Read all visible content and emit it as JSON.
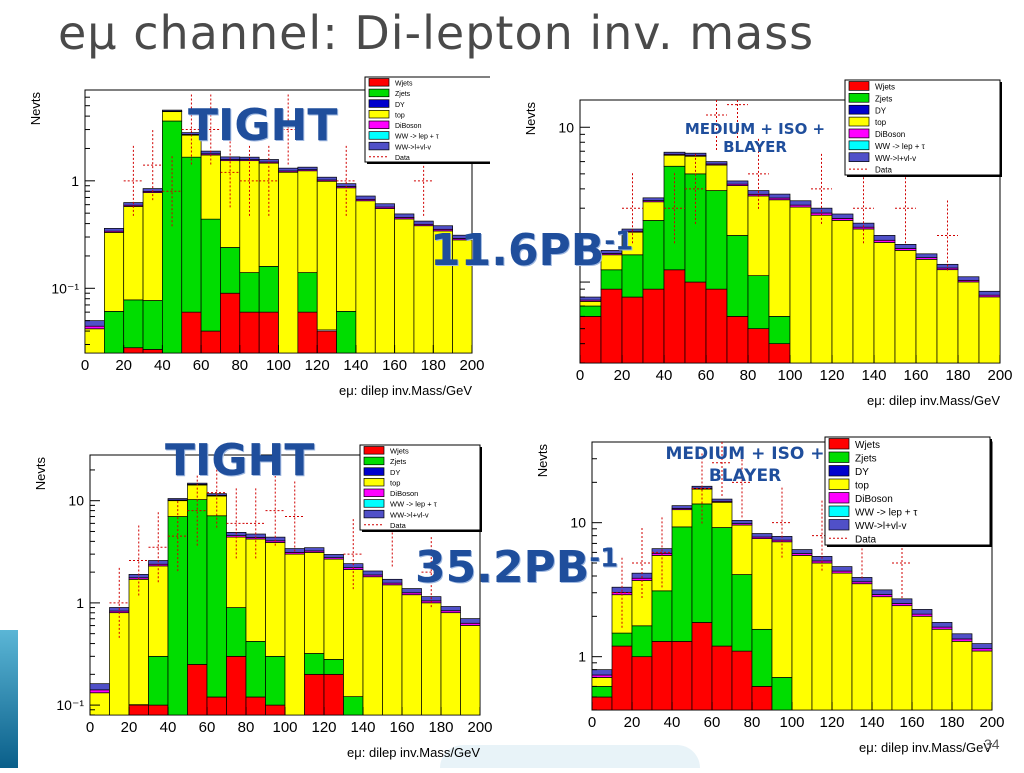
{
  "slide": {
    "title": "eμ channel: Di-lepton inv. mass",
    "page_number": "34",
    "lumi_top": "11.6PB",
    "lumi_bottom": "35.2PB",
    "lumi_exp": "-1",
    "tight": "TIGHT",
    "medium_line1": "MEDIUM + ISO +",
    "medium_line2": "BLAYER"
  },
  "colors": {
    "Wjets": "#ff0000",
    "Zjets": "#00dd00",
    "DY": "#0000cc",
    "top": "#ffff00",
    "DiBoson": "#ff00ff",
    "WWlep": "#00ffff",
    "WWlvlv": "#5050c8",
    "Data": "#d00000"
  },
  "legend": [
    "Wjets",
    "Zjets",
    "DY",
    "top",
    "DiBoson",
    "WW -> lep + τ",
    "WW->l+vl-v",
    "Data"
  ],
  "chart_data": [
    {
      "type": "bar",
      "stacked": true,
      "log_y": true,
      "ylabel": "Nevts",
      "xlabel": "eμ: dilep inv.Mass/GeV",
      "xlim": [
        0,
        200
      ],
      "ylim": [
        0.025,
        7
      ],
      "xticks": [
        0,
        20,
        40,
        60,
        80,
        100,
        120,
        140,
        160,
        180,
        200
      ],
      "yticks": [
        {
          "v": 1,
          "label": "1"
        },
        {
          "v": 0.1,
          "label": "10⁻¹"
        }
      ],
      "bin_width": 10,
      "series": {
        "Wjets": [
          0.001,
          0.001,
          0.028,
          0.027,
          0.001,
          0.06,
          0.04,
          0.09,
          0.06,
          0.06,
          0.001,
          0.06,
          0.04,
          0.001,
          0.001,
          0.001,
          0.001,
          0.001,
          0.001,
          0.001
        ],
        "Zjets": [
          0.001,
          0.06,
          0.05,
          0.05,
          3.6,
          1.6,
          0.4,
          0.15,
          0.08,
          0.1,
          0.001,
          0.08,
          0.001,
          0.06,
          0.001,
          0.001,
          0.001,
          0.001,
          0.001,
          0.001
        ],
        "top": [
          0.04,
          0.27,
          0.5,
          0.7,
          0.8,
          1.0,
          1.3,
          1.3,
          1.4,
          1.3,
          1.2,
          1.1,
          0.95,
          0.8,
          0.65,
          0.55,
          0.44,
          0.38,
          0.34,
          0.28
        ],
        "other": [
          0.008,
          0.03,
          0.05,
          0.07,
          0.15,
          0.15,
          0.15,
          0.13,
          0.12,
          0.12,
          0.11,
          0.1,
          0.09,
          0.08,
          0.07,
          0.06,
          0.05,
          0.04,
          0.04,
          0.03
        ]
      },
      "data": [
        {
          "x": 25,
          "y": 1.0
        },
        {
          "x": 35,
          "y": 1.4
        },
        {
          "x": 45,
          "y": 0.8
        },
        {
          "x": 55,
          "y": 3.0
        },
        {
          "x": 65,
          "y": 3.0
        },
        {
          "x": 75,
          "y": 1.2
        },
        {
          "x": 85,
          "y": 1.0
        },
        {
          "x": 95,
          "y": 1.0
        },
        {
          "x": 105,
          "y": 3.0
        },
        {
          "x": 135,
          "y": 1.0
        },
        {
          "x": 175,
          "y": 1.0
        }
      ]
    },
    {
      "type": "bar",
      "stacked": true,
      "log_y": true,
      "ylabel": "Nevts",
      "xlabel": "eμ: dilep inv.Mass/GeV",
      "xlim": [
        0,
        200
      ],
      "ylim": [
        0.3,
        15
      ],
      "xticks": [
        0,
        20,
        40,
        60,
        80,
        100,
        120,
        140,
        160,
        180,
        200
      ],
      "yticks": [
        {
          "v": 10,
          "label": "10"
        }
      ],
      "bin_width": 10,
      "series": {
        "Wjets": [
          0.6,
          0.9,
          0.8,
          0.9,
          1.2,
          1.0,
          0.9,
          0.6,
          0.5,
          0.4,
          0.001,
          0.001,
          0.001,
          0.001,
          0.001,
          0.001,
          0.001,
          0.001,
          0.001,
          0.001
        ],
        "Zjets": [
          0.1,
          0.3,
          0.7,
          1.6,
          4.4,
          4.0,
          3.0,
          1.4,
          0.6,
          0.2,
          0.15,
          0.001,
          0.001,
          0.001,
          0.001,
          0.001,
          0.001,
          0.001,
          0.001,
          0.001
        ],
        "top": [
          0.05,
          0.3,
          0.6,
          0.8,
          1.0,
          1.5,
          1.8,
          2.2,
          2.5,
          2.8,
          2.9,
          2.7,
          2.5,
          2.2,
          1.8,
          1.6,
          1.4,
          1.2,
          1.0,
          0.8
        ],
        "other": [
          0.05,
          0.1,
          0.1,
          0.2,
          0.3,
          0.3,
          0.3,
          0.3,
          0.3,
          0.3,
          0.3,
          0.3,
          0.25,
          0.2,
          0.2,
          0.15,
          0.12,
          0.1,
          0.08,
          0.07
        ]
      },
      "data": [
        {
          "x": 25,
          "y": 3.0
        },
        {
          "x": 45,
          "y": 3.0
        },
        {
          "x": 55,
          "y": 4.0
        },
        {
          "x": 65,
          "y": 12
        },
        {
          "x": 75,
          "y": 14
        },
        {
          "x": 85,
          "y": 5
        },
        {
          "x": 115,
          "y": 4
        },
        {
          "x": 135,
          "y": 3
        },
        {
          "x": 155,
          "y": 3
        },
        {
          "x": 175,
          "y": 2
        }
      ]
    },
    {
      "type": "bar",
      "stacked": true,
      "log_y": true,
      "ylabel": "Nevts",
      "xlabel": "eμ: dilep inv.Mass/GeV",
      "xlim": [
        0,
        200
      ],
      "ylim": [
        0.08,
        28
      ],
      "xticks": [
        0,
        20,
        40,
        60,
        80,
        100,
        120,
        140,
        160,
        180,
        200
      ],
      "yticks": [
        {
          "v": 10,
          "label": "10"
        },
        {
          "v": 1,
          "label": "1"
        },
        {
          "v": 0.1,
          "label": "10⁻¹"
        }
      ],
      "bin_width": 10,
      "series": {
        "Wjets": [
          0.001,
          0.001,
          0.1,
          0.1,
          0.001,
          0.25,
          0.12,
          0.3,
          0.12,
          0.1,
          0.001,
          0.2,
          0.2,
          0.001,
          0.001,
          0.001,
          0.001,
          0.001,
          0.001,
          0.001
        ],
        "Zjets": [
          0.001,
          0.001,
          0.001,
          0.2,
          7.0,
          10.0,
          7.0,
          0.6,
          0.3,
          0.2,
          0.001,
          0.12,
          0.08,
          0.12,
          0.001,
          0.001,
          0.001,
          0.001,
          0.001,
          0.001
        ],
        "top": [
          0.13,
          0.8,
          1.6,
          2.0,
          3.0,
          4.0,
          4.0,
          3.5,
          3.8,
          3.6,
          3.0,
          2.8,
          2.4,
          2.0,
          1.8,
          1.5,
          1.2,
          1.0,
          0.8,
          0.6
        ],
        "other": [
          0.03,
          0.1,
          0.2,
          0.3,
          0.5,
          0.6,
          0.6,
          0.5,
          0.5,
          0.5,
          0.4,
          0.35,
          0.3,
          0.3,
          0.25,
          0.2,
          0.18,
          0.15,
          0.12,
          0.1
        ]
      },
      "data": [
        {
          "x": 15,
          "y": 1.0
        },
        {
          "x": 25,
          "y": 2.6
        },
        {
          "x": 35,
          "y": 3.5
        },
        {
          "x": 45,
          "y": 4.5
        },
        {
          "x": 55,
          "y": 8
        },
        {
          "x": 65,
          "y": 12
        },
        {
          "x": 75,
          "y": 6
        },
        {
          "x": 85,
          "y": 6
        },
        {
          "x": 95,
          "y": 8
        },
        {
          "x": 105,
          "y": 7
        },
        {
          "x": 135,
          "y": 3
        },
        {
          "x": 155,
          "y": 5
        },
        {
          "x": 175,
          "y": 2
        }
      ]
    },
    {
      "type": "bar",
      "stacked": true,
      "log_y": true,
      "ylabel": "Nevts",
      "xlabel": "eμ: dilep inv.Mass/GeV",
      "xlim": [
        0,
        200
      ],
      "ylim": [
        0.4,
        40
      ],
      "xticks": [
        0,
        20,
        40,
        60,
        80,
        100,
        120,
        140,
        160,
        180,
        200
      ],
      "yticks": [
        {
          "v": 10,
          "label": "10"
        },
        {
          "v": 1,
          "label": "1"
        }
      ],
      "bin_width": 10,
      "series": {
        "Wjets": [
          0.5,
          1.2,
          1.0,
          1.3,
          1.3,
          1.8,
          1.2,
          1.1,
          0.6,
          0.4,
          0.001,
          0.001,
          0.001,
          0.001,
          0.001,
          0.001,
          0.001,
          0.001,
          0.001,
          0.001
        ],
        "Zjets": [
          0.1,
          0.3,
          0.7,
          1.8,
          8.0,
          12.0,
          8.0,
          3.0,
          1.0,
          0.3,
          0.2,
          0.001,
          0.001,
          0.001,
          0.001,
          0.001,
          0.001,
          0.001,
          0.001,
          0.001
        ],
        "top": [
          0.1,
          1.4,
          2.0,
          2.6,
          3.2,
          4.0,
          5.0,
          5.5,
          6.0,
          6.5,
          5.5,
          5.0,
          4.2,
          3.5,
          2.8,
          2.4,
          2.0,
          1.6,
          1.3,
          1.1
        ],
        "other": [
          0.1,
          0.4,
          0.5,
          0.7,
          0.9,
          0.9,
          0.8,
          0.8,
          0.7,
          0.7,
          0.6,
          0.6,
          0.5,
          0.4,
          0.35,
          0.3,
          0.25,
          0.2,
          0.18,
          0.15
        ]
      },
      "data": [
        {
          "x": 15,
          "y": 3.0
        },
        {
          "x": 25,
          "y": 5.0
        },
        {
          "x": 35,
          "y": 6.0
        },
        {
          "x": 55,
          "y": 18
        },
        {
          "x": 65,
          "y": 28
        },
        {
          "x": 75,
          "y": 20
        },
        {
          "x": 95,
          "y": 10
        },
        {
          "x": 115,
          "y": 8
        },
        {
          "x": 135,
          "y": 7
        },
        {
          "x": 155,
          "y": 5
        }
      ]
    }
  ]
}
